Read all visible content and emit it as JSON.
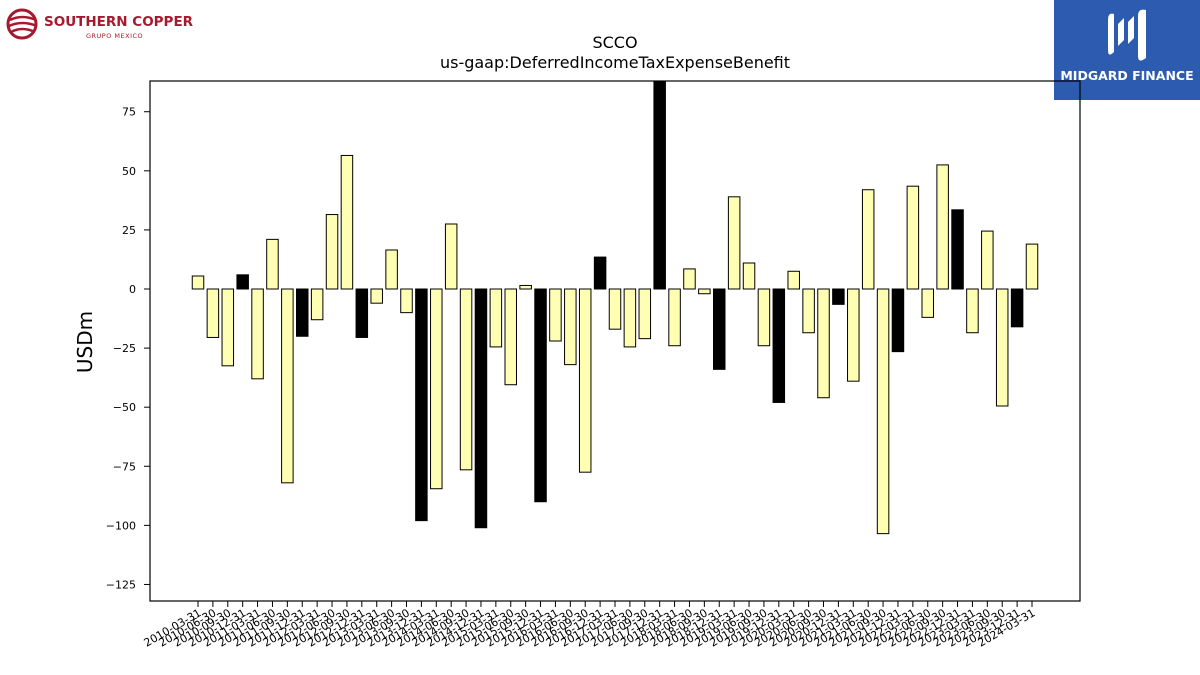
{
  "logos": {
    "left_brand": "SOUTHERN COPPER",
    "left_sub": "GRUPO MEXICO",
    "right_brand": "MIDGARD FINANCE"
  },
  "colors": {
    "positive_fill": "#ffffb3",
    "highlight_fill": "#000000",
    "bar_edge": "#000000",
    "right_logo_bg": "#2d5bb0",
    "left_logo": "#a6192e"
  },
  "chart_data": {
    "type": "bar",
    "title": "SCCO",
    "subtitle": "us-gaap:DeferredIncomeTaxExpenseBenefit",
    "xlabel": "",
    "ylabel": "USDm",
    "ylim": [
      -132,
      88
    ],
    "yticks": [
      75,
      50,
      25,
      0,
      -25,
      -50,
      -75,
      -100,
      -125
    ],
    "grid": false,
    "legend": "none",
    "categories": [
      "2010-03-31",
      "2010-06-30",
      "2010-09-30",
      "2010-12-31",
      "2011-03-31",
      "2011-06-30",
      "2011-09-30",
      "2011-12-31",
      "2012-03-31",
      "2012-06-30",
      "2012-09-30",
      "2012-12-31",
      "2013-03-31",
      "2013-06-30",
      "2013-09-30",
      "2013-12-31",
      "2014-03-31",
      "2014-06-30",
      "2014-09-30",
      "2014-12-31",
      "2015-03-31",
      "2015-06-30",
      "2015-09-30",
      "2015-12-31",
      "2016-03-31",
      "2016-06-30",
      "2016-09-30",
      "2016-12-31",
      "2017-03-31",
      "2017-06-30",
      "2017-09-30",
      "2017-12-31",
      "2018-03-31",
      "2018-06-30",
      "2018-09-30",
      "2018-12-31",
      "2019-03-31",
      "2019-06-30",
      "2019-09-30",
      "2019-12-31",
      "2020-03-31",
      "2020-06-30",
      "2020-09-30",
      "2020-12-31",
      "2021-03-31",
      "2021-06-30",
      "2021-09-30",
      "2021-12-31",
      "2022-03-31",
      "2022-06-30",
      "2022-09-30",
      "2022-12-31",
      "2023-03-31",
      "2023-06-30",
      "2023-09-30",
      "2023-12-31",
      "2024-03-31"
    ],
    "values": [
      5.5,
      -20.5,
      -32.5,
      6,
      -38,
      21,
      -82,
      -20,
      -13,
      31.5,
      56.5,
      -20.5,
      -6,
      16.5,
      -10,
      -98,
      -84.5,
      27.5,
      -76.5,
      -101,
      -24.5,
      -40.5,
      1.5,
      -90,
      -22,
      -32,
      -77.5,
      13.5,
      -17,
      -24.5,
      -21,
      88,
      -24,
      8.5,
      -2,
      -34,
      39,
      11,
      -24,
      -48,
      7.5,
      -18.5,
      -46,
      -6.5,
      -39,
      42,
      -103.5,
      -26.5,
      43.5,
      -12,
      52.5,
      33.5,
      -18.5,
      24.5,
      -49.5,
      -16,
      19
    ],
    "highlight": [
      false,
      false,
      false,
      true,
      false,
      false,
      false,
      true,
      false,
      false,
      false,
      true,
      false,
      false,
      false,
      true,
      false,
      false,
      false,
      true,
      false,
      false,
      false,
      true,
      false,
      false,
      false,
      true,
      false,
      false,
      false,
      true,
      false,
      false,
      false,
      true,
      false,
      false,
      false,
      true,
      false,
      false,
      false,
      true,
      false,
      false,
      false,
      true,
      false,
      false,
      false,
      true,
      false,
      false,
      false,
      true,
      false
    ]
  }
}
